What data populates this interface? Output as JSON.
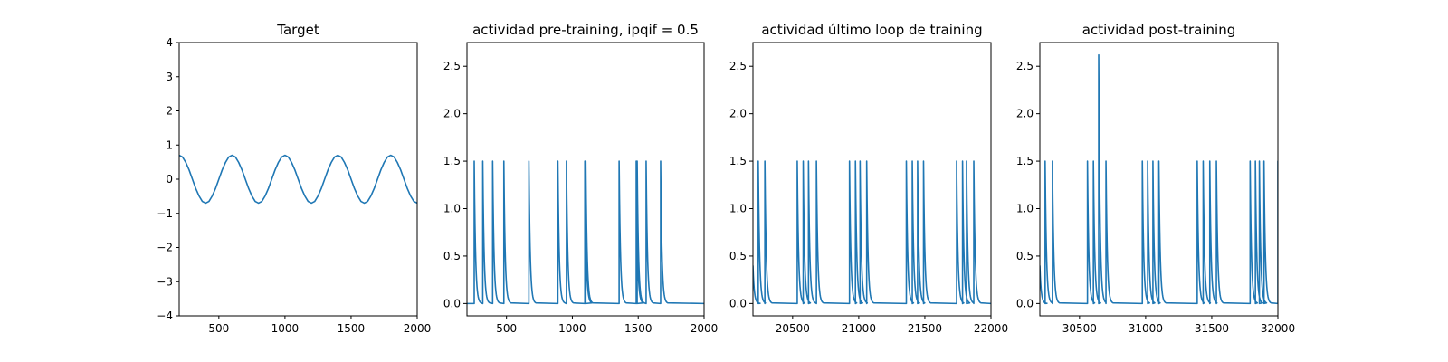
{
  "chart_data": [
    {
      "type": "line",
      "title": "Target",
      "xlabel": "",
      "ylabel": "",
      "xlim": [
        200,
        2000
      ],
      "ylim": [
        -4,
        4
      ],
      "xticks": [
        500,
        1000,
        1500,
        2000
      ],
      "yticks": [
        -4,
        -3,
        -2,
        -1,
        0,
        1,
        2,
        3,
        4
      ],
      "ytick_labels": [
        "−4",
        "−3",
        "−2",
        "−1",
        "0",
        "1",
        "2",
        "3",
        "4"
      ],
      "grid": false,
      "color": "#1f77b4",
      "x": [
        200,
        225,
        250,
        275,
        300,
        325,
        350,
        375,
        400,
        425,
        450,
        475,
        500,
        525,
        550,
        575,
        600,
        625,
        650,
        675,
        700,
        725,
        750,
        775,
        800,
        825,
        850,
        875,
        900,
        925,
        950,
        975,
        1000,
        1025,
        1050,
        1075,
        1100,
        1125,
        1150,
        1175,
        1200,
        1225,
        1250,
        1275,
        1300,
        1325,
        1350,
        1375,
        1400,
        1425,
        1450,
        1475,
        1500,
        1525,
        1550,
        1575,
        1600,
        1625,
        1650,
        1675,
        1700,
        1725,
        1750,
        1775,
        1800,
        1825,
        1850,
        1875,
        1900,
        1925,
        1950,
        1975,
        2000
      ],
      "y": [
        0.7,
        0.65,
        0.49,
        0.27,
        0,
        -0.27,
        -0.49,
        -0.65,
        -0.7,
        -0.65,
        -0.49,
        -0.27,
        0,
        0.27,
        0.49,
        0.65,
        0.7,
        0.65,
        0.49,
        0.27,
        0,
        -0.27,
        -0.49,
        -0.65,
        -0.7,
        -0.65,
        -0.49,
        -0.27,
        0,
        0.27,
        0.49,
        0.65,
        0.7,
        0.65,
        0.49,
        0.27,
        0,
        -0.27,
        -0.49,
        -0.65,
        -0.7,
        -0.65,
        -0.49,
        -0.27,
        0,
        0.27,
        0.49,
        0.65,
        0.7,
        0.65,
        0.49,
        0.27,
        0,
        -0.27,
        -0.49,
        -0.65,
        -0.7,
        -0.65,
        -0.49,
        -0.27,
        0,
        0.27,
        0.49,
        0.65,
        0.7,
        0.65,
        0.49,
        0.27,
        0,
        -0.27,
        -0.49,
        -0.65,
        -0.7
      ]
    },
    {
      "type": "line",
      "title": "actividad pre-training, ipqif = 0.5",
      "xlabel": "",
      "ylabel": "",
      "xlim": [
        200,
        2000
      ],
      "ylim": [
        -0.13,
        2.75
      ],
      "xticks": [
        500,
        1000,
        1500,
        2000
      ],
      "yticks": [
        0,
        0.5,
        1,
        1.5,
        2,
        2.5
      ],
      "ytick_labels": [
        "0.0",
        "0.5",
        "1.0",
        "1.5",
        "2.0",
        "2.5"
      ],
      "grid": false,
      "color": "#1f77b4",
      "baseline": 0,
      "initial_level": 0,
      "spikes": [
        {
          "x": 255,
          "y": 1.5
        },
        {
          "x": 320,
          "y": 1.5
        },
        {
          "x": 395,
          "y": 1.5
        },
        {
          "x": 480,
          "y": 1.5
        },
        {
          "x": 670,
          "y": 1.5
        },
        {
          "x": 890,
          "y": 1.5
        },
        {
          "x": 955,
          "y": 1.5
        },
        {
          "x": 1095,
          "y": 1.5
        },
        {
          "x": 1102,
          "y": 1.5
        },
        {
          "x": 1355,
          "y": 1.5
        },
        {
          "x": 1485,
          "y": 1.5
        },
        {
          "x": 1492,
          "y": 1.5
        },
        {
          "x": 1560,
          "y": 1.5
        },
        {
          "x": 1670,
          "y": 1.5
        }
      ]
    },
    {
      "type": "line",
      "title": "actividad último loop de training",
      "xlabel": "",
      "ylabel": "",
      "xlim": [
        20200,
        22000
      ],
      "ylim": [
        -0.13,
        2.75
      ],
      "xticks": [
        20500,
        21000,
        21500,
        22000
      ],
      "yticks": [
        0,
        0.5,
        1,
        1.5,
        2,
        2.5
      ],
      "ytick_labels": [
        "0.0",
        "0.5",
        "1.0",
        "1.5",
        "2.0",
        "2.5"
      ],
      "grid": false,
      "color": "#1f77b4",
      "baseline": 0,
      "initial_level": 0.4,
      "spikes": [
        {
          "x": 20240,
          "y": 1.5
        },
        {
          "x": 20290,
          "y": 1.5
        },
        {
          "x": 20535,
          "y": 1.5
        },
        {
          "x": 20580,
          "y": 1.5
        },
        {
          "x": 20620,
          "y": 1.5
        },
        {
          "x": 20680,
          "y": 1.5
        },
        {
          "x": 20930,
          "y": 1.5
        },
        {
          "x": 20975,
          "y": 1.5
        },
        {
          "x": 21010,
          "y": 1.5
        },
        {
          "x": 21060,
          "y": 1.5
        },
        {
          "x": 21360,
          "y": 1.5
        },
        {
          "x": 21405,
          "y": 1.5
        },
        {
          "x": 21445,
          "y": 1.5
        },
        {
          "x": 21490,
          "y": 1.5
        },
        {
          "x": 21740,
          "y": 1.5
        },
        {
          "x": 21785,
          "y": 1.5
        },
        {
          "x": 21815,
          "y": 1.5
        },
        {
          "x": 21870,
          "y": 1.5
        }
      ]
    },
    {
      "type": "line",
      "title": "actividad post-training",
      "xlabel": "",
      "ylabel": "",
      "xlim": [
        30200,
        32000
      ],
      "ylim": [
        -0.13,
        2.75
      ],
      "xticks": [
        30500,
        31000,
        31500,
        32000
      ],
      "yticks": [
        0,
        0.5,
        1,
        1.5,
        2,
        2.5
      ],
      "ytick_labels": [
        "0.0",
        "0.5",
        "1.0",
        "1.5",
        "2.0",
        "2.5"
      ],
      "grid": false,
      "color": "#1f77b4",
      "baseline": 0,
      "initial_level": 0.4,
      "spikes": [
        {
          "x": 30240,
          "y": 1.5
        },
        {
          "x": 30295,
          "y": 1.5
        },
        {
          "x": 30560,
          "y": 1.5
        },
        {
          "x": 30605,
          "y": 1.5
        },
        {
          "x": 30645,
          "y": 2.62
        },
        {
          "x": 30700,
          "y": 1.5
        },
        {
          "x": 30975,
          "y": 1.5
        },
        {
          "x": 31015,
          "y": 1.5
        },
        {
          "x": 31055,
          "y": 1.5
        },
        {
          "x": 31100,
          "y": 1.5
        },
        {
          "x": 31390,
          "y": 1.5
        },
        {
          "x": 31435,
          "y": 1.5
        },
        {
          "x": 31485,
          "y": 1.5
        },
        {
          "x": 31535,
          "y": 1.5
        },
        {
          "x": 31790,
          "y": 1.5
        },
        {
          "x": 31830,
          "y": 1.5
        },
        {
          "x": 31860,
          "y": 1.5
        },
        {
          "x": 31895,
          "y": 1.5
        },
        {
          "x": 32000,
          "y": 1.5
        }
      ]
    }
  ]
}
